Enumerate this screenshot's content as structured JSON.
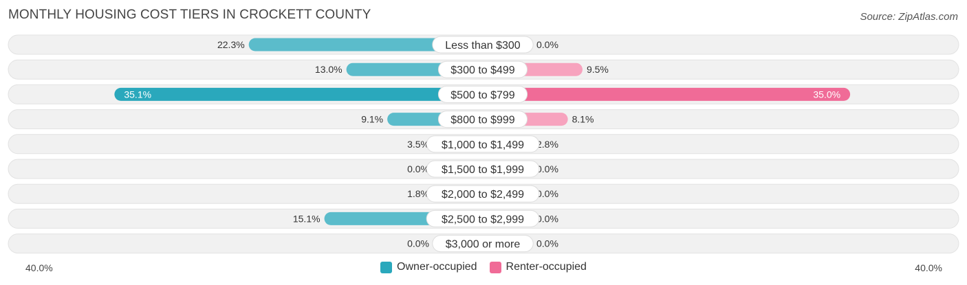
{
  "title": "MONTHLY HOUSING COST TIERS IN CROCKETT COUNTY",
  "source": "Source: ZipAtlas.com",
  "colors": {
    "owner": "#5bbccb",
    "owner_strong": "#2aa8bc",
    "renter": "#f7a3be",
    "renter_strong": "#f06b97",
    "row_bg": "#f1f1f1"
  },
  "chart_data": {
    "type": "bar",
    "orientation": "horizontal-diverging",
    "title": "MONTHLY HOUSING COST TIERS IN CROCKETT COUNTY",
    "categories": [
      "Less than $300",
      "$300 to $499",
      "$500 to $799",
      "$800 to $999",
      "$1,000 to $1,499",
      "$1,500 to $1,999",
      "$2,000 to $2,499",
      "$2,500 to $2,999",
      "$3,000 or more"
    ],
    "series": [
      {
        "name": "Owner-occupied",
        "values": [
          22.3,
          13.0,
          35.1,
          9.1,
          3.5,
          0.0,
          1.8,
          15.1,
          0.0
        ],
        "labels": [
          "22.3%",
          "13.0%",
          "35.1%",
          "9.1%",
          "3.5%",
          "0.0%",
          "1.8%",
          "15.1%",
          "0.0%"
        ]
      },
      {
        "name": "Renter-occupied",
        "values": [
          0.0,
          9.5,
          35.0,
          8.1,
          2.8,
          0.0,
          0.0,
          0.0,
          0.0
        ],
        "labels": [
          "0.0%",
          "9.5%",
          "35.0%",
          "8.1%",
          "2.8%",
          "0.0%",
          "0.0%",
          "0.0%",
          "0.0%"
        ]
      }
    ],
    "xlim": [
      -40,
      40
    ],
    "axis_left_label": "40.0%",
    "axis_right_label": "40.0%",
    "legend": [
      "Owner-occupied",
      "Renter-occupied"
    ]
  }
}
